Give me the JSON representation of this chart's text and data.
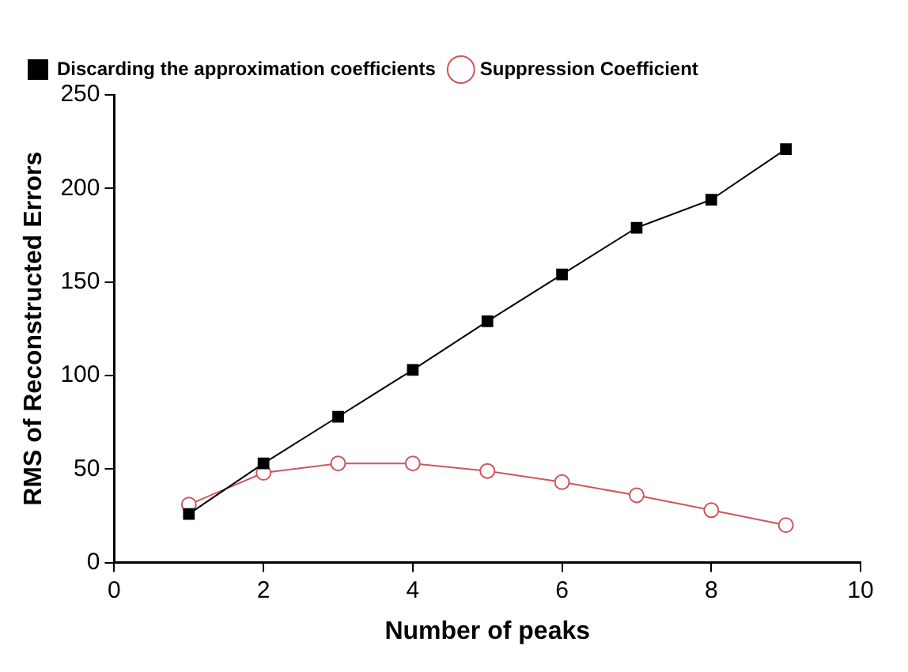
{
  "chart_data": {
    "type": "line",
    "xlabel": "Number of peaks",
    "ylabel": "RMS of Reconstructed Errors",
    "x": [
      1,
      2,
      3,
      4,
      5,
      6,
      7,
      8,
      9
    ],
    "series": [
      {
        "name": "Discarding the approximation coefficients",
        "color": "#000000",
        "marker": "square",
        "values": [
          26,
          53,
          78,
          103,
          129,
          154,
          179,
          194,
          221
        ]
      },
      {
        "name": "Suppression Coefficient",
        "color": "#d0565e",
        "marker": "circle",
        "values": [
          31,
          48,
          53,
          53,
          49,
          43,
          36,
          28,
          20
        ]
      }
    ],
    "xlim": [
      0,
      10
    ],
    "xticks": [
      0,
      2,
      4,
      6,
      8,
      10
    ],
    "ylim": [
      0,
      250
    ],
    "yticks": [
      0,
      50,
      100,
      150,
      200,
      250
    ],
    "grid": false,
    "legend": "top left",
    "line_style": "solid"
  }
}
